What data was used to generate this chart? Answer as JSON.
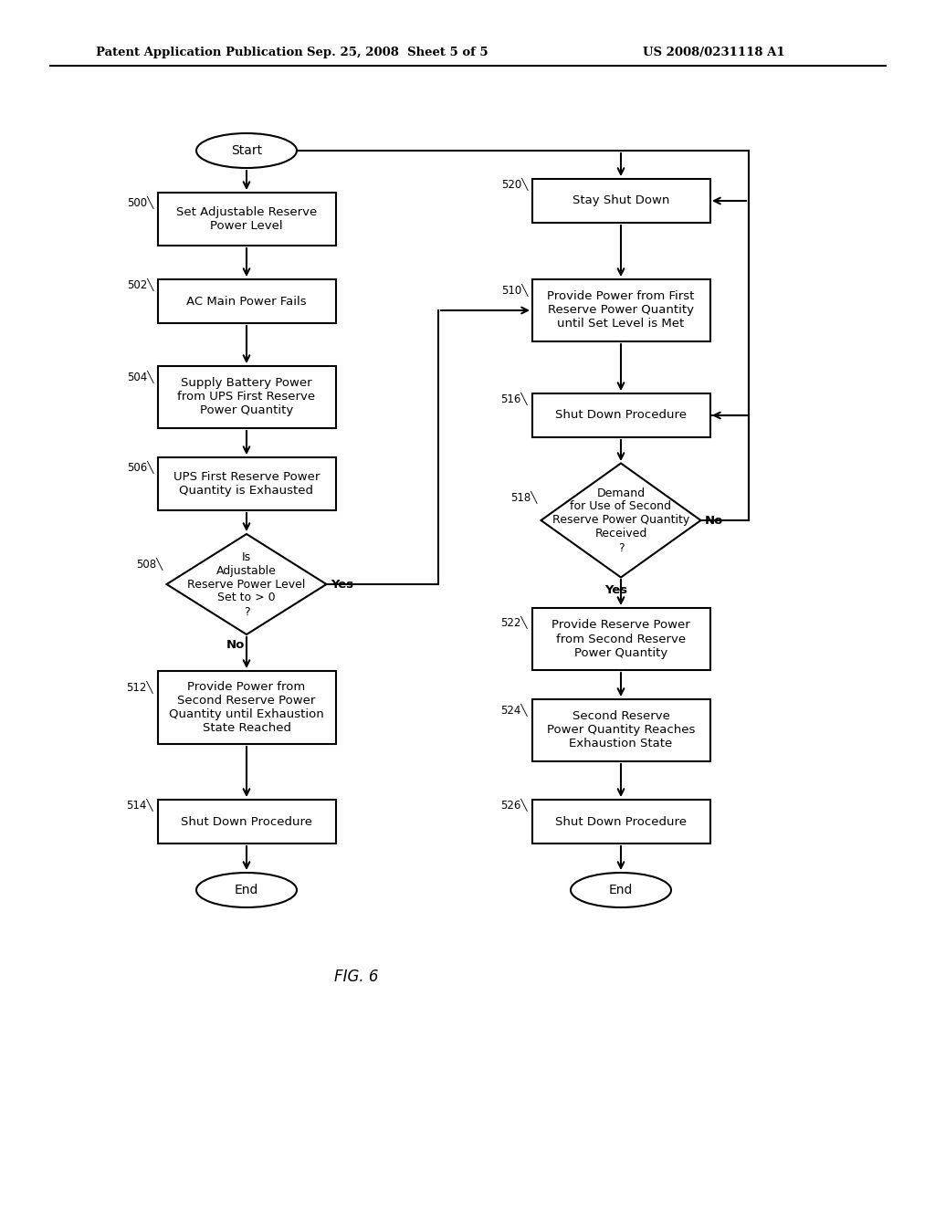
{
  "title_left": "Patent Application Publication",
  "title_mid": "Sep. 25, 2008  Sheet 5 of 5",
  "title_right": "US 2008/0231118 A1",
  "fig_label": "FIG. 6",
  "bg_color": "#ffffff"
}
